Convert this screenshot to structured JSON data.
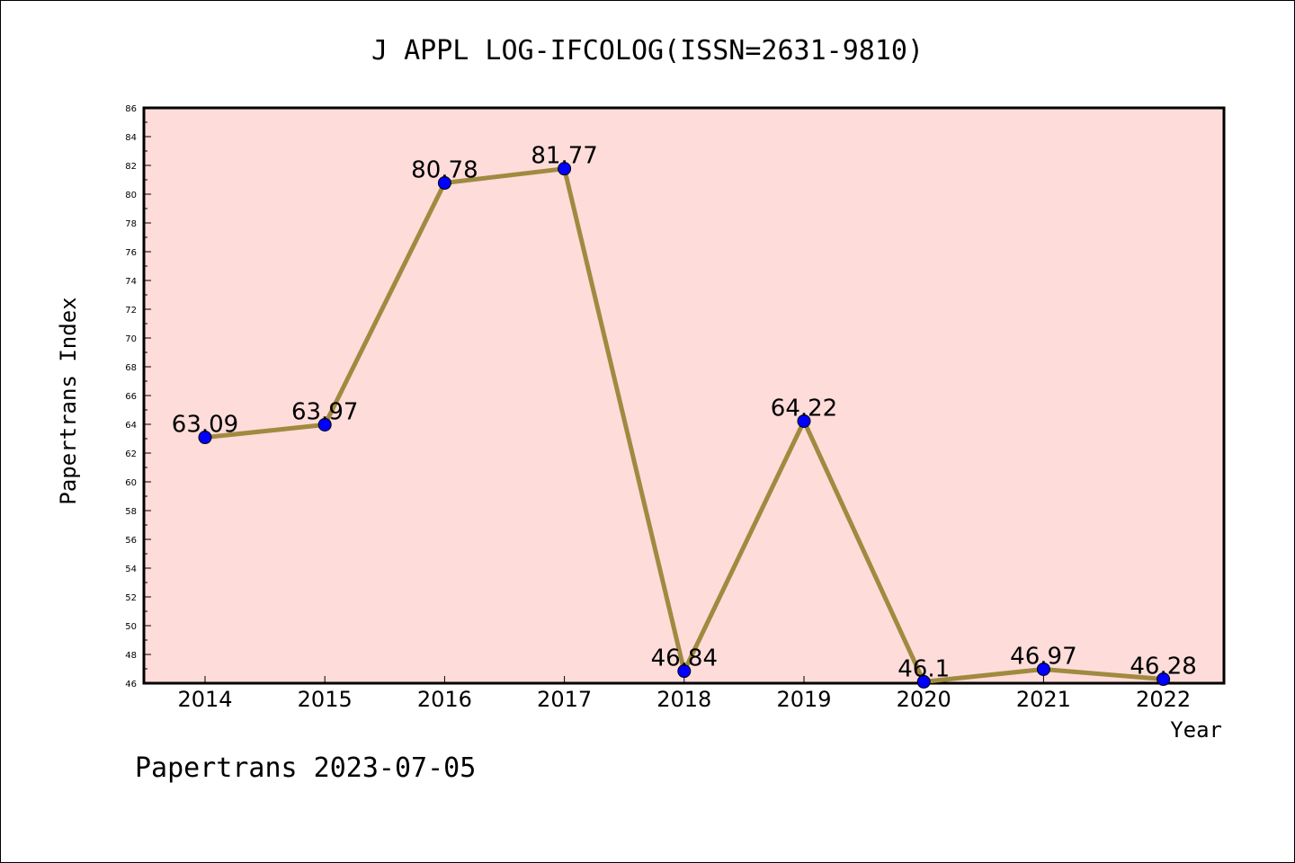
{
  "chart_data": {
    "type": "line",
    "title": "J APPL LOG-IFCOLOG(ISSN=2631-9810)",
    "xlabel": "Year",
    "ylabel": "Papertrans Index",
    "categories": [
      "2014",
      "2015",
      "2016",
      "2017",
      "2018",
      "2019",
      "2020",
      "2021",
      "2022"
    ],
    "values": [
      63.09,
      63.97,
      80.78,
      81.77,
      46.84,
      64.22,
      46.1,
      46.97,
      46.28
    ],
    "value_labels": [
      "63.09",
      "63.97",
      "80.78",
      "81.77",
      "46.84",
      "64.22",
      "46.1",
      "46.97",
      "46.28"
    ],
    "ylim": [
      46,
      86
    ],
    "yticks": [
      46,
      48,
      50,
      52,
      54,
      56,
      58,
      60,
      62,
      64,
      66,
      68,
      70,
      72,
      74,
      76,
      78,
      80,
      82,
      84,
      86
    ],
    "grid": false,
    "colors": {
      "plot_background": "#fddcda",
      "line": "#a08a40",
      "marker": "#0000ff"
    }
  },
  "footer": "Papertrans 2023-07-05"
}
